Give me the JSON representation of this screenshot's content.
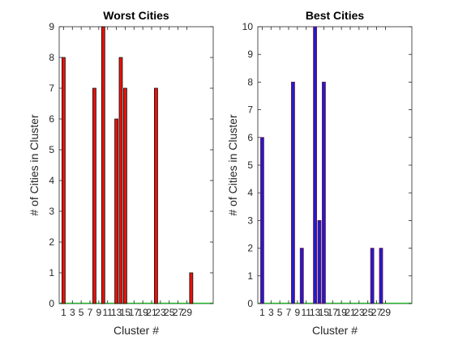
{
  "chart_data": [
    {
      "type": "bar",
      "title": "Worst Cities",
      "xlabel": "Cluster #",
      "ylabel": "# of Cities in Cluster",
      "x_ticks": [
        "1",
        "3",
        "5",
        "7",
        "9",
        "11",
        "13",
        "15",
        "17",
        "19",
        "21",
        "23",
        "25",
        "27",
        "29"
      ],
      "y_ticks": [
        "0",
        "1",
        "2",
        "3",
        "4",
        "5",
        "6",
        "7",
        "8",
        "9"
      ],
      "xlim": [
        0,
        35
      ],
      "ylim": [
        0,
        9
      ],
      "bar_color": "#e8110a",
      "edge_color": "#111111",
      "series": [
        {
          "x": [
            1,
            8,
            10,
            13,
            14,
            15,
            22,
            30
          ],
          "values": [
            8,
            7,
            9,
            6,
            8,
            7,
            7,
            1
          ]
        }
      ],
      "grid": false
    },
    {
      "type": "bar",
      "title": "Best Cities",
      "xlabel": "Cluster #",
      "ylabel": "# of Cities in Cluster",
      "x_ticks": [
        "1",
        "3",
        "5",
        "7",
        "9",
        "11",
        "13",
        "15",
        "17",
        "19",
        "21",
        "23",
        "25",
        "27",
        "29"
      ],
      "y_ticks": [
        "0",
        "1",
        "2",
        "3",
        "4",
        "5",
        "6",
        "7",
        "8",
        "9",
        "10"
      ],
      "xlim": [
        0,
        35
      ],
      "ylim": [
        0,
        10
      ],
      "bar_color": "#1e1ec8",
      "edge_color": "#6e1050",
      "series": [
        {
          "x": [
            1,
            8,
            10,
            13,
            14,
            15,
            26,
            28
          ],
          "values": [
            6,
            8,
            2,
            10,
            3,
            8,
            2,
            2
          ]
        }
      ],
      "grid": false
    }
  ]
}
